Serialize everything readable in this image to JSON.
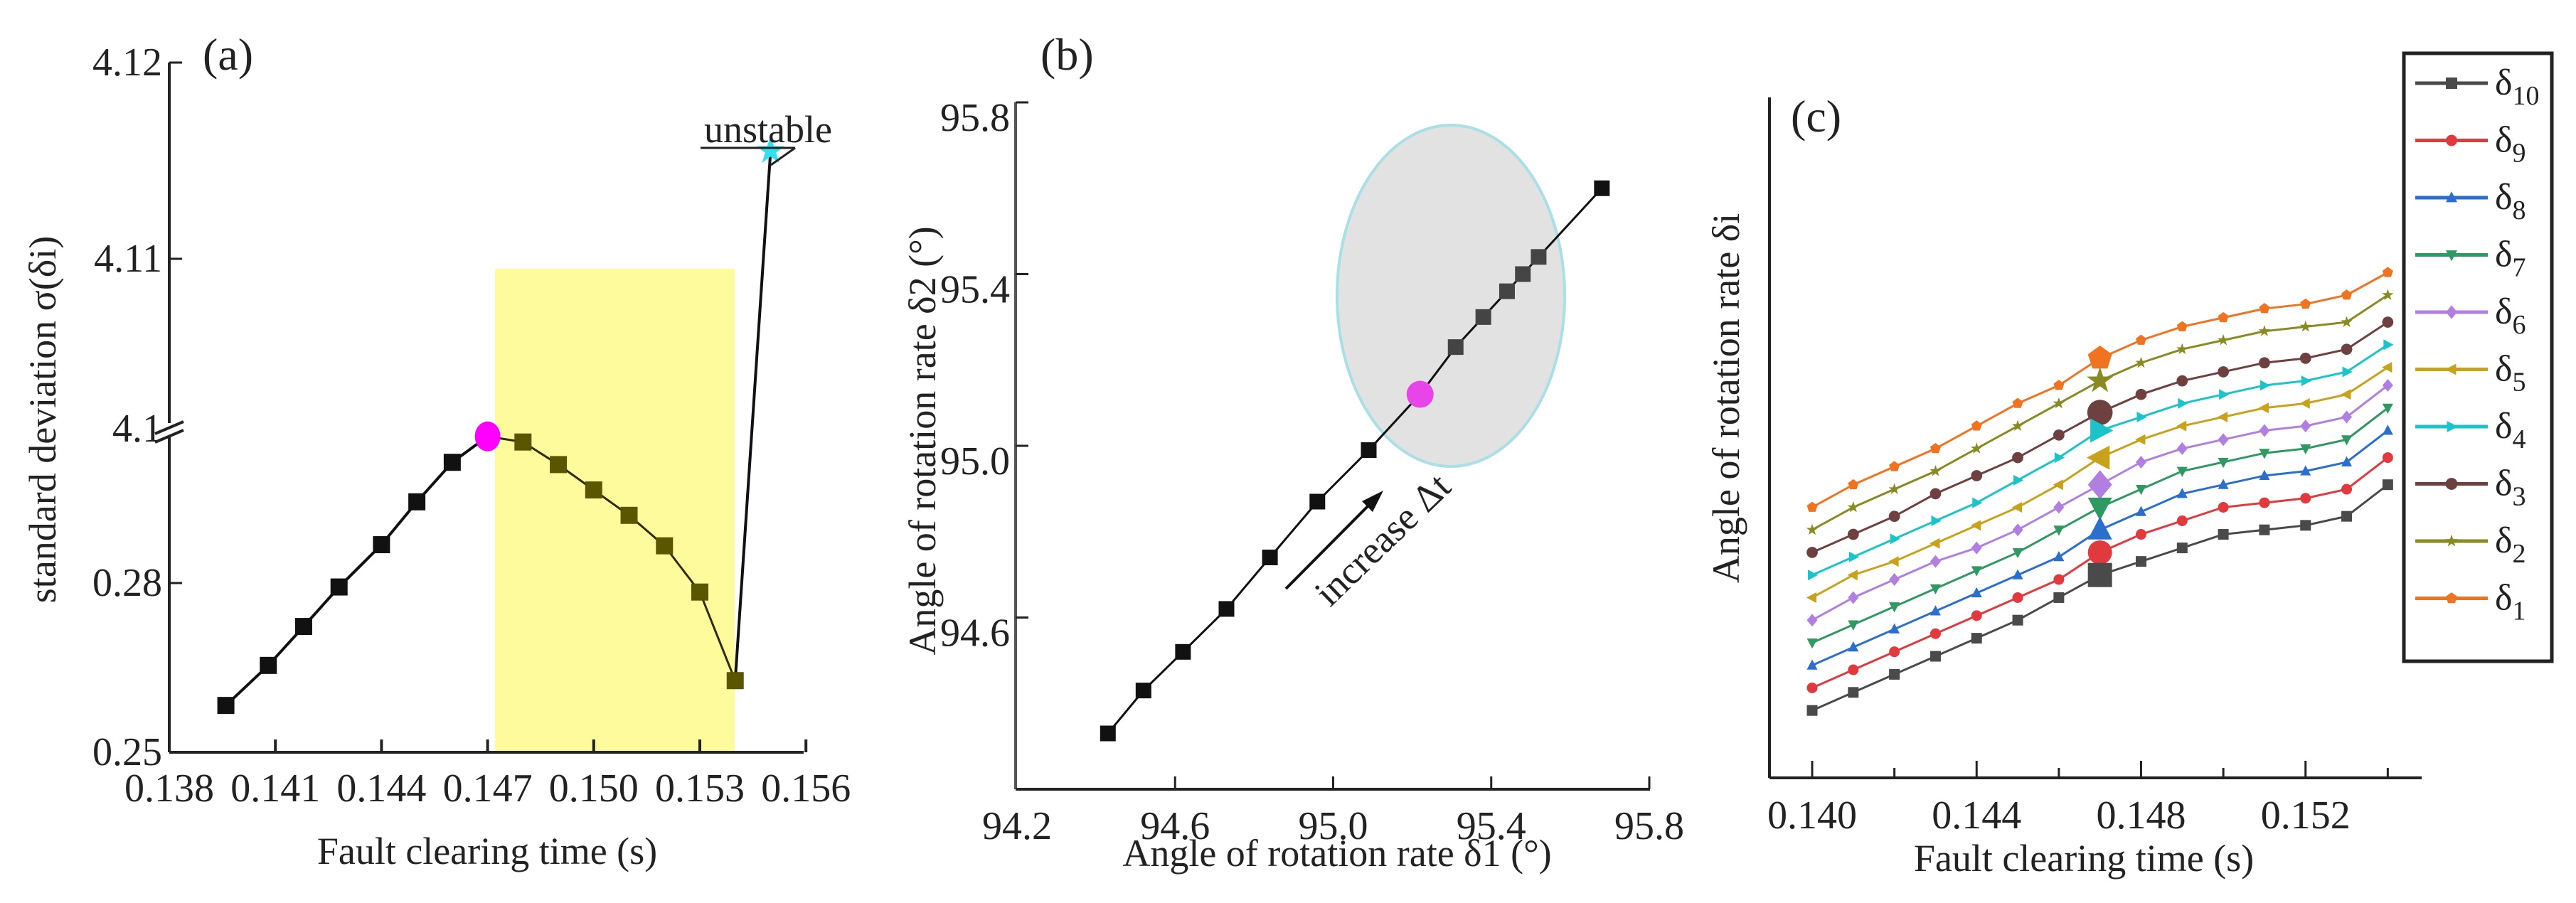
{
  "figure": {
    "panels": [
      {
        "id": "a",
        "label": "(a)"
      },
      {
        "id": "b",
        "label": "(b)"
      },
      {
        "id": "c",
        "label": "(c)"
      }
    ]
  },
  "panel_a": {
    "label": "(a)",
    "xlabel": "Fault clearing time (s)",
    "ylabel": "standard deviation σ(δi)",
    "xticks": [
      "0.138",
      "0.141",
      "0.144",
      "0.147",
      "0.150",
      "0.153",
      "0.156"
    ],
    "yticks_upper": [
      "4.12",
      "4.11",
      "4.1"
    ],
    "yticks_lower": [
      "0.28",
      "0.25"
    ],
    "annotation": "unstable",
    "colors": {
      "line": "#111111",
      "highlight_marker": "#ff00ff",
      "shade": "#fdfb9c",
      "shaded_marker": "#5a5600",
      "unstable_marker": "#33e0f0"
    }
  },
  "panel_b": {
    "label": "(b)",
    "xlabel": "Angle of rotation rate δ1 (°)",
    "ylabel": "Angle of rotation rate δ2 (°)",
    "xticks": [
      "94.2",
      "94.6",
      "95.0",
      "95.4",
      "95.8"
    ],
    "yticks": [
      "95.8",
      "95.4",
      "95.0",
      "94.6",
      "94.2"
    ],
    "annotation": "increase Δt",
    "colors": {
      "line": "#111111",
      "highlight_marker": "#e845e8",
      "ellipse_fill": "#e2e2e2",
      "ellipse_stroke": "#a9dfe6",
      "cluster_marker": "#444444"
    }
  },
  "panel_c": {
    "label": "(c)",
    "xlabel": "Fault clearing time (s)",
    "ylabel": "Angle of rotation rate δi",
    "xticks": [
      "0.140",
      "0.144",
      "0.148",
      "0.152"
    ],
    "legend": [
      {
        "name": "δ10",
        "base": "δ",
        "sub": "10",
        "color": "#4a4a4a",
        "marker": "square"
      },
      {
        "name": "δ9",
        "base": "δ",
        "sub": "9",
        "color": "#e0393e",
        "marker": "circle"
      },
      {
        "name": "δ8",
        "base": "δ",
        "sub": "8",
        "color": "#2a6fce",
        "marker": "triangle-up"
      },
      {
        "name": "δ7",
        "base": "δ",
        "sub": "7",
        "color": "#2e9a62",
        "marker": "triangle-down"
      },
      {
        "name": "δ6",
        "base": "δ",
        "sub": "6",
        "color": "#b07fe0",
        "marker": "diamond"
      },
      {
        "name": "δ5",
        "base": "δ",
        "sub": "5",
        "color": "#c8a21a",
        "marker": "triangle-left"
      },
      {
        "name": "δ4",
        "base": "δ",
        "sub": "4",
        "color": "#1bc4c9",
        "marker": "triangle-right"
      },
      {
        "name": "δ3",
        "base": "δ",
        "sub": "3",
        "color": "#6e4040",
        "marker": "hexagon"
      },
      {
        "name": "δ2",
        "base": "δ",
        "sub": "2",
        "color": "#8a8a22",
        "marker": "star"
      },
      {
        "name": "δ1",
        "base": "δ",
        "sub": "1",
        "color": "#f07420",
        "marker": "pentagon"
      }
    ]
  },
  "chart_data": [
    {
      "panel": "(a)",
      "type": "line",
      "title": "",
      "xlabel": "Fault clearing time (s)",
      "ylabel": "standard deviation σ(δi)",
      "xlim": [
        0.138,
        0.156
      ],
      "ylim": [
        0.25,
        4.12
      ],
      "y_axis_break": [
        0.29,
        4.1
      ],
      "x": [
        0.1396,
        0.1408,
        0.1418,
        0.1428,
        0.144,
        0.145,
        0.146,
        0.147,
        0.148,
        0.149,
        0.15,
        0.151,
        0.152,
        0.153,
        0.154,
        0.155
      ],
      "series": [
        {
          "name": "σ(δi) stable",
          "values": [
            0.2583,
            0.2654,
            0.2723,
            0.2793,
            0.2868,
            0.2944,
            0.3014,
            null,
            null,
            null,
            null,
            null,
            null,
            null,
            null,
            null
          ]
        },
        {
          "name": "σ(δi) peak (magenta)",
          "values": [
            null,
            null,
            null,
            null,
            null,
            null,
            null,
            0.306,
            null,
            null,
            null,
            null,
            null,
            null,
            null,
            null
          ]
        },
        {
          "name": "σ(δi) shaded region",
          "values": [
            null,
            null,
            null,
            null,
            null,
            null,
            null,
            null,
            0.305,
            0.301,
            0.2965,
            0.292,
            0.2866,
            0.2784,
            0.2627,
            null
          ]
        },
        {
          "name": "unstable",
          "values": [
            null,
            null,
            null,
            null,
            null,
            null,
            null,
            null,
            null,
            null,
            null,
            null,
            null,
            null,
            null,
            4.1155
          ]
        }
      ],
      "shaded_region": {
        "x": [
          0.1472,
          0.154
        ],
        "color": "#fdfb9c"
      },
      "annotations": [
        "unstable"
      ],
      "grid": false
    },
    {
      "panel": "(b)",
      "type": "scatter",
      "xlabel": "Angle of rotation rate δ1 (°)",
      "ylabel": "Angle of rotation rate δ2 (°)",
      "xlim": [
        94.2,
        95.8
      ],
      "ylim": [
        94.2,
        95.8
      ],
      "points": [
        {
          "x": 94.43,
          "y": 94.33
        },
        {
          "x": 94.52,
          "y": 94.43
        },
        {
          "x": 94.62,
          "y": 94.52
        },
        {
          "x": 94.73,
          "y": 94.62
        },
        {
          "x": 94.84,
          "y": 94.74
        },
        {
          "x": 94.96,
          "y": 94.87
        },
        {
          "x": 95.09,
          "y": 94.99
        },
        {
          "x": 95.22,
          "y": 95.12,
          "highlight": true
        },
        {
          "x": 95.31,
          "y": 95.23
        },
        {
          "x": 95.38,
          "y": 95.3
        },
        {
          "x": 95.44,
          "y": 95.36
        },
        {
          "x": 95.48,
          "y": 95.4
        },
        {
          "x": 95.52,
          "y": 95.44
        },
        {
          "x": 95.68,
          "y": 95.6
        }
      ],
      "annotations": [
        "increase Δt"
      ],
      "ellipse": {
        "cx": 95.34,
        "cy": 95.27,
        "rx": 0.21,
        "ry": 0.32
      },
      "grid": false
    },
    {
      "panel": "(c)",
      "type": "line",
      "xlabel": "Fault clearing time (s)",
      "ylabel": "Angle of rotation rate δi",
      "xlim": [
        0.1392,
        0.1542
      ],
      "x": [
        0.14,
        0.141,
        0.142,
        0.143,
        0.144,
        0.145,
        0.146,
        0.147,
        0.148,
        0.149,
        0.15,
        0.151,
        0.152,
        0.153,
        0.154
      ],
      "y_pixel_note": "no y tick labels shown; values are relative (0 = axis bottom, 100 = top)",
      "series": [
        {
          "name": "δ1",
          "values": [
            53,
            58,
            62,
            66,
            71,
            76,
            80,
            86,
            90,
            93,
            95,
            97,
            98,
            100,
            105
          ]
        },
        {
          "name": "δ2",
          "values": [
            48,
            53,
            57,
            61,
            66,
            71,
            76,
            81,
            85,
            88,
            90,
            92,
            93,
            94,
            100
          ]
        },
        {
          "name": "δ3",
          "values": [
            43,
            47,
            51,
            56,
            60,
            64,
            69,
            74,
            78,
            81,
            83,
            85,
            86,
            88,
            94
          ]
        },
        {
          "name": "δ4",
          "values": [
            38,
            42,
            46,
            50,
            54,
            59,
            64,
            70,
            73,
            76,
            78,
            80,
            81,
            83,
            89
          ]
        },
        {
          "name": "δ5",
          "values": [
            33,
            38,
            41,
            45,
            49,
            53,
            58,
            64,
            68,
            71,
            73,
            75,
            76,
            78,
            84
          ]
        },
        {
          "name": "δ6",
          "values": [
            28,
            33,
            37,
            41,
            44,
            48,
            53,
            58,
            63,
            66,
            68,
            70,
            71,
            73,
            80
          ]
        },
        {
          "name": "δ7",
          "values": [
            23,
            27,
            31,
            35,
            39,
            43,
            48,
            53,
            57,
            61,
            63,
            65,
            66,
            68,
            75
          ]
        },
        {
          "name": "δ8",
          "values": [
            18,
            22,
            26,
            30,
            34,
            38,
            42,
            48,
            52,
            56,
            58,
            60,
            61,
            63,
            70
          ]
        },
        {
          "name": "δ9",
          "values": [
            13,
            17,
            21,
            25,
            29,
            33,
            37,
            43,
            47,
            50,
            53,
            54,
            55,
            57,
            64
          ]
        },
        {
          "name": "δ10",
          "values": [
            8,
            12,
            16,
            20,
            24,
            28,
            33,
            38,
            41,
            44,
            47,
            48,
            49,
            51,
            58
          ]
        }
      ],
      "highlight_x": 0.147,
      "legend_position": "right",
      "grid": false
    }
  ]
}
